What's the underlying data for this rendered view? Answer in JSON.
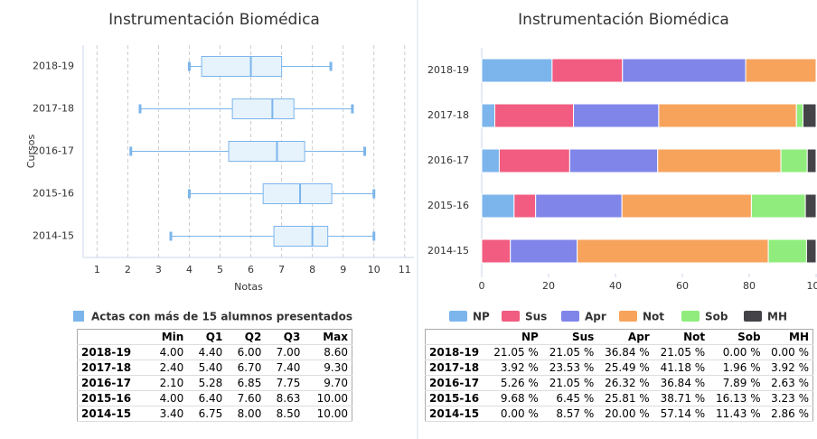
{
  "chart_data": [
    {
      "type": "boxplot",
      "title": "Instrumentación Biomédica",
      "x_label": "Notas",
      "y_label": "Cursos",
      "categories": [
        "2018-19",
        "2017-18",
        "2016-17",
        "2015-16",
        "2014-15"
      ],
      "series": [
        {
          "name": "Actas con más de 15 alumnos presentados",
          "color": "#7cb5ec",
          "values": [
            [
              4.0,
              4.4,
              6.0,
              7.0,
              8.6
            ],
            [
              2.4,
              5.4,
              6.7,
              7.4,
              9.3
            ],
            [
              2.1,
              5.28,
              6.85,
              7.75,
              9.7
            ],
            [
              4.0,
              6.4,
              7.6,
              8.63,
              10.0
            ],
            [
              3.4,
              6.75,
              8.0,
              8.5,
              10.0
            ]
          ]
        }
      ],
      "xlim": [
        0.55,
        11.3
      ],
      "xticks": [
        1,
        2,
        3,
        4,
        5,
        6,
        7,
        8,
        9,
        10,
        11
      ],
      "grid": true
    },
    {
      "type": "stacked_bar",
      "title": "Instrumentación Biomédica",
      "categories": [
        "2018-19",
        "2017-18",
        "2016-17",
        "2015-16",
        "2014-15"
      ],
      "series": [
        {
          "name": "NP",
          "color": "#7cb5ec",
          "values": [
            21.05,
            3.92,
            5.26,
            9.68,
            0.0
          ]
        },
        {
          "name": "Sus",
          "color": "#f15c80",
          "values": [
            21.05,
            23.53,
            21.05,
            6.45,
            8.57
          ]
        },
        {
          "name": "Apr",
          "color": "#8085e9",
          "values": [
            36.84,
            25.49,
            26.32,
            25.81,
            20.0
          ]
        },
        {
          "name": "Not",
          "color": "#f7a35c",
          "values": [
            21.05,
            41.18,
            36.84,
            38.71,
            57.14
          ]
        },
        {
          "name": "Sob",
          "color": "#90ed7d",
          "values": [
            0.0,
            1.96,
            7.89,
            16.13,
            11.43
          ]
        },
        {
          "name": "MH",
          "color": "#434348",
          "values": [
            0.0,
            3.92,
            2.63,
            3.23,
            2.86
          ]
        }
      ],
      "xlim": [
        0,
        100
      ],
      "xticks": [
        0,
        20,
        40,
        60,
        80,
        100
      ]
    }
  ],
  "tables": [
    {
      "columns": [
        "Min",
        "Q1",
        "Q2",
        "Q3",
        "Max"
      ],
      "rows": [
        [
          "2018-19",
          "4.00",
          "4.40",
          "6.00",
          "7.00",
          "8.60"
        ],
        [
          "2017-18",
          "2.40",
          "5.40",
          "6.70",
          "7.40",
          "9.30"
        ],
        [
          "2016-17",
          "2.10",
          "5.28",
          "6.85",
          "7.75",
          "9.70"
        ],
        [
          "2015-16",
          "4.00",
          "6.40",
          "7.60",
          "8.63",
          "10.00"
        ],
        [
          "2014-15",
          "3.40",
          "6.75",
          "8.00",
          "8.50",
          "10.00"
        ]
      ]
    },
    {
      "columns": [
        "NP",
        "Sus",
        "Apr",
        "Not",
        "Sob",
        "MH"
      ],
      "rows": [
        [
          "2018-19",
          "21.05 %",
          "21.05 %",
          "36.84 %",
          "21.05 %",
          "0.00 %",
          "0.00 %"
        ],
        [
          "2017-18",
          "3.92 %",
          "23.53 %",
          "25.49 %",
          "41.18 %",
          "1.96 %",
          "3.92 %"
        ],
        [
          "2016-17",
          "5.26 %",
          "21.05 %",
          "26.32 %",
          "36.84 %",
          "7.89 %",
          "2.63 %"
        ],
        [
          "2015-16",
          "9.68 %",
          "6.45 %",
          "25.81 %",
          "38.71 %",
          "16.13 %",
          "3.23 %"
        ],
        [
          "2014-15",
          "0.00 %",
          "8.57 %",
          "20.00 %",
          "57.14 %",
          "11.43 %",
          "2.86 %"
        ]
      ]
    }
  ]
}
